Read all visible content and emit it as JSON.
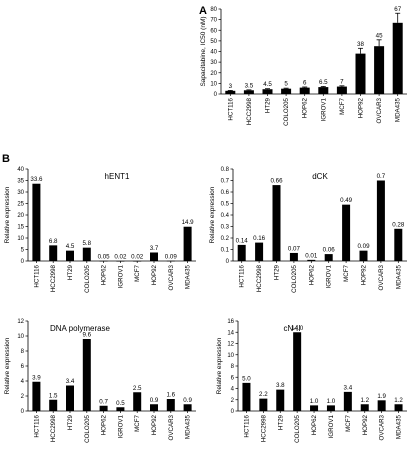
{
  "panel_labels": [
    "A",
    "B"
  ],
  "chart_data": [
    {
      "id": "A",
      "type": "bar",
      "title": "",
      "ylabel": "Sapacitabine, IC50 (nM)",
      "ylim": [
        0,
        80
      ],
      "yticks": [
        0,
        10,
        20,
        30,
        40,
        50,
        60,
        70,
        80
      ],
      "categories": [
        "HCT116",
        "HCC2998",
        "HT29",
        "COLO205",
        "HOP62",
        "IGROV1",
        "MCF7",
        "HOP92",
        "OVCAR3",
        "MDA435"
      ],
      "values": [
        3,
        3.5,
        4.5,
        5,
        6,
        6.5,
        7,
        38,
        45,
        67
      ],
      "value_labels": [
        "3",
        "3.5",
        "4.5",
        "5",
        "6",
        "6.5",
        "7",
        "38",
        "45",
        "67"
      ],
      "errors": [
        0.4,
        0.4,
        0.5,
        0.5,
        0.6,
        0.6,
        0.7,
        5,
        6,
        9
      ]
    },
    {
      "id": "hENT1",
      "type": "bar",
      "title": "hENT1",
      "ylabel": "Relative expression",
      "ylim": [
        0,
        40
      ],
      "yticks": [
        0,
        5,
        10,
        15,
        20,
        25,
        30,
        35,
        40
      ],
      "categories": [
        "HCT116",
        "HCC2998",
        "HT29",
        "COLO205",
        "HOP62",
        "IGROV1",
        "MCF7",
        "HOP92",
        "OVCAR3",
        "MDA435"
      ],
      "values": [
        33.6,
        6.8,
        4.5,
        5.8,
        0.05,
        0.02,
        0.02,
        3.7,
        0.09,
        14.9
      ],
      "value_labels": [
        "33.6",
        "6.8",
        "4.5",
        "5.8",
        "0.05",
        "0.02",
        "0.02",
        "3.7",
        "0.09",
        "14.9"
      ]
    },
    {
      "id": "dCK",
      "type": "bar",
      "title": "dCK",
      "ylabel": "Relative expression",
      "ylim": [
        0,
        0.8
      ],
      "yticks": [
        0,
        0.1,
        0.2,
        0.3,
        0.4,
        0.5,
        0.6,
        0.7,
        0.8
      ],
      "categories": [
        "HCT116",
        "HCC2998",
        "HT29",
        "COLO205",
        "HOP62",
        "IGROV1",
        "MCF7",
        "HOP92",
        "OVCAR3",
        "MDA435"
      ],
      "values": [
        0.14,
        0.16,
        0.66,
        0.07,
        0.01,
        0.06,
        0.49,
        0.09,
        0.7,
        0.28
      ],
      "value_labels": [
        "0.14",
        "0.16",
        "0.66",
        "0.07",
        "0.01",
        "0.06",
        "0.49",
        "0.09",
        "0.7",
        "0.28"
      ]
    },
    {
      "id": "DNA polymerase",
      "type": "bar",
      "title": "DNA polymerase",
      "ylabel": "Relative expression",
      "ylim": [
        0,
        12
      ],
      "yticks": [
        0,
        2,
        4,
        6,
        8,
        10,
        12
      ],
      "categories": [
        "HCT116",
        "HCC2998",
        "HT29",
        "COLO205",
        "HOP62",
        "IGROV1",
        "MCF7",
        "HOP92",
        "OVCAR3",
        "MDA435"
      ],
      "values": [
        3.9,
        1.5,
        3.4,
        9.6,
        0.7,
        0.5,
        2.5,
        0.9,
        1.6,
        0.9
      ],
      "value_labels": [
        "3.9",
        "1.5",
        "3.4",
        "9.6",
        "0.7",
        "0.5",
        "2.5",
        "0.9",
        "1.6",
        "0.9"
      ]
    },
    {
      "id": "cN-II",
      "type": "bar",
      "title": "cN-II",
      "ylabel": "Relative expression",
      "ylim": [
        0,
        16
      ],
      "yticks": [
        0,
        2,
        4,
        6,
        8,
        10,
        12,
        14,
        16
      ],
      "categories": [
        "HCT116",
        "HCC2998",
        "HT29",
        "COLO205",
        "HOP62",
        "IGROV1",
        "MCF7",
        "HOP92",
        "OVCAR3",
        "MDA435"
      ],
      "values": [
        5.0,
        2.2,
        3.8,
        14.0,
        1.0,
        1.0,
        3.4,
        1.2,
        1.9,
        1.2
      ],
      "value_labels": [
        "5.0",
        "2.2",
        "3.8",
        "14.0",
        "1.0",
        "1.0",
        "3.4",
        "1.2",
        "1.9",
        "1.2"
      ]
    }
  ]
}
